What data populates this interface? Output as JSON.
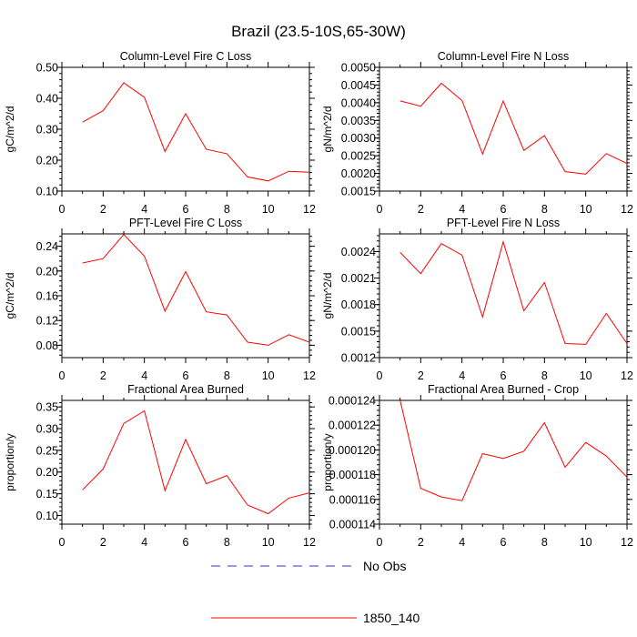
{
  "figure": {
    "title": "Brazil (23.5-10S,65-30W)"
  },
  "legend": {
    "entries": [
      {
        "label": "No Obs",
        "color": "#3333cc",
        "style": "dashed"
      },
      {
        "label": "1850_140",
        "color": "#ff0000",
        "style": "solid"
      }
    ]
  },
  "chart_data": [
    {
      "type": "line",
      "title": "Column-Level Fire C Loss",
      "ylabel": "gC/m^2/d",
      "xlabel": "",
      "xlim": [
        0,
        12
      ],
      "ylim": [
        0.1,
        0.5
      ],
      "xticks": [
        "0",
        "2",
        "4",
        "6",
        "8",
        "10",
        "12"
      ],
      "yticks": [
        {
          "v": 0.1,
          "t": "0.10"
        },
        {
          "v": 0.2,
          "t": "0.20"
        },
        {
          "v": 0.3,
          "t": "0.30"
        },
        {
          "v": 0.4,
          "t": "0.40"
        },
        {
          "v": 0.5,
          "t": "0.50"
        }
      ],
      "x": [
        1,
        2,
        3,
        4,
        5,
        6,
        7,
        8,
        9,
        10,
        11,
        12
      ],
      "series": [
        {
          "name": "1850_140",
          "color": "#ff0000",
          "values": [
            0.323,
            0.36,
            0.45,
            0.403,
            0.228,
            0.35,
            0.235,
            0.221,
            0.146,
            0.133,
            0.164,
            0.161
          ]
        }
      ]
    },
    {
      "type": "line",
      "title": "Column-Level Fire N Loss",
      "ylabel": "gN/m^2/d",
      "xlabel": "",
      "xlim": [
        0,
        12
      ],
      "ylim": [
        0.0015,
        0.005
      ],
      "xticks": [
        "0",
        "2",
        "4",
        "6",
        "8",
        "10",
        "12"
      ],
      "yticks": [
        {
          "v": 0.0015,
          "t": "0.0015"
        },
        {
          "v": 0.002,
          "t": "0.0020"
        },
        {
          "v": 0.0025,
          "t": "0.0025"
        },
        {
          "v": 0.003,
          "t": "0.0030"
        },
        {
          "v": 0.0035,
          "t": "0.0035"
        },
        {
          "v": 0.004,
          "t": "0.0040"
        },
        {
          "v": 0.0045,
          "t": "0.0045"
        },
        {
          "v": 0.005,
          "t": "0.0050"
        }
      ],
      "x": [
        1,
        2,
        3,
        4,
        5,
        6,
        7,
        8,
        9,
        10,
        11,
        12
      ],
      "series": [
        {
          "name": "1850_140",
          "color": "#ff0000",
          "values": [
            0.00405,
            0.0039,
            0.00455,
            0.00406,
            0.00255,
            0.00405,
            0.00265,
            0.00307,
            0.00205,
            0.00198,
            0.00256,
            0.00228
          ]
        }
      ]
    },
    {
      "type": "line",
      "title": "PFT-Level Fire C Loss",
      "ylabel": "gC/m^2/d",
      "xlabel": "",
      "xlim": [
        0,
        12
      ],
      "ylim": [
        0.06,
        0.26
      ],
      "xticks": [
        "0",
        "2",
        "4",
        "6",
        "8",
        "10",
        "12"
      ],
      "yticks": [
        {
          "v": 0.08,
          "t": "0.08"
        },
        {
          "v": 0.12,
          "t": "0.12"
        },
        {
          "v": 0.16,
          "t": "0.16"
        },
        {
          "v": 0.2,
          "t": "0.20"
        },
        {
          "v": 0.24,
          "t": "0.24"
        }
      ],
      "x": [
        1,
        2,
        3,
        4,
        5,
        6,
        7,
        8,
        9,
        10,
        11,
        12
      ],
      "series": [
        {
          "name": "1850_140",
          "color": "#ff0000",
          "values": [
            0.213,
            0.22,
            0.259,
            0.224,
            0.135,
            0.199,
            0.134,
            0.129,
            0.085,
            0.08,
            0.097,
            0.085
          ]
        }
      ]
    },
    {
      "type": "line",
      "title": "PFT-Level Fire N Loss",
      "ylabel": "gN/m^2/d",
      "xlabel": "",
      "xlim": [
        0,
        12
      ],
      "ylim": [
        0.0012,
        0.0026
      ],
      "xticks": [
        "0",
        "2",
        "4",
        "6",
        "8",
        "10",
        "12"
      ],
      "yticks": [
        {
          "v": 0.0012,
          "t": "0.0012"
        },
        {
          "v": 0.0015,
          "t": "0.0015"
        },
        {
          "v": 0.0018,
          "t": "0.0018"
        },
        {
          "v": 0.0021,
          "t": "0.0021"
        },
        {
          "v": 0.0024,
          "t": "0.0024"
        }
      ],
      "x": [
        1,
        2,
        3,
        4,
        5,
        6,
        7,
        8,
        9,
        10,
        11,
        12
      ],
      "series": [
        {
          "name": "1850_140",
          "color": "#ff0000",
          "values": [
            0.00239,
            0.00215,
            0.00249,
            0.00236,
            0.00166,
            0.00251,
            0.00173,
            0.00205,
            0.00136,
            0.00135,
            0.0017,
            0.00136
          ]
        }
      ]
    },
    {
      "type": "line",
      "title": "Fractional Area Burned",
      "ylabel": "proportion/y",
      "xlabel": "",
      "xlim": [
        0,
        12
      ],
      "ylim": [
        0.08,
        0.365
      ],
      "xticks": [
        "0",
        "2",
        "4",
        "6",
        "8",
        "10",
        "12"
      ],
      "yticks": [
        {
          "v": 0.1,
          "t": "0.10"
        },
        {
          "v": 0.15,
          "t": "0.15"
        },
        {
          "v": 0.2,
          "t": "0.20"
        },
        {
          "v": 0.25,
          "t": "0.25"
        },
        {
          "v": 0.3,
          "t": "0.30"
        },
        {
          "v": 0.35,
          "t": "0.35"
        }
      ],
      "x": [
        1,
        2,
        3,
        4,
        5,
        6,
        7,
        8,
        9,
        10,
        11,
        12
      ],
      "series": [
        {
          "name": "1850_140",
          "color": "#ff0000",
          "values": [
            0.159,
            0.207,
            0.312,
            0.341,
            0.157,
            0.275,
            0.173,
            0.192,
            0.124,
            0.104,
            0.14,
            0.152
          ]
        }
      ]
    },
    {
      "type": "line",
      "title": "Fractional Area Burned - Crop",
      "ylabel": "proportion/y",
      "xlabel": "",
      "xlim": [
        0,
        12
      ],
      "ylim": [
        0.000114,
        0.000124
      ],
      "xticks": [
        "0",
        "2",
        "4",
        "6",
        "8",
        "10",
        "12"
      ],
      "yticks": [
        {
          "v": 0.000114,
          "t": "0.000114"
        },
        {
          "v": 0.000116,
          "t": "0.000116"
        },
        {
          "v": 0.000118,
          "t": "0.000118"
        },
        {
          "v": 0.00012,
          "t": "0.000120"
        },
        {
          "v": 0.000122,
          "t": "0.000122"
        },
        {
          "v": 0.000124,
          "t": "0.000124"
        }
      ],
      "x": [
        1,
        2,
        3,
        4,
        5,
        6,
        7,
        8,
        9,
        10,
        11,
        12
      ],
      "series": [
        {
          "name": "1850_140",
          "color": "#ff0000",
          "values": [
            0.000124,
            0.0001169,
            0.0001162,
            0.0001159,
            0.0001197,
            0.0001193,
            0.0001199,
            0.0001222,
            0.0001186,
            0.0001206,
            0.0001195,
            0.0001178
          ]
        }
      ]
    }
  ]
}
